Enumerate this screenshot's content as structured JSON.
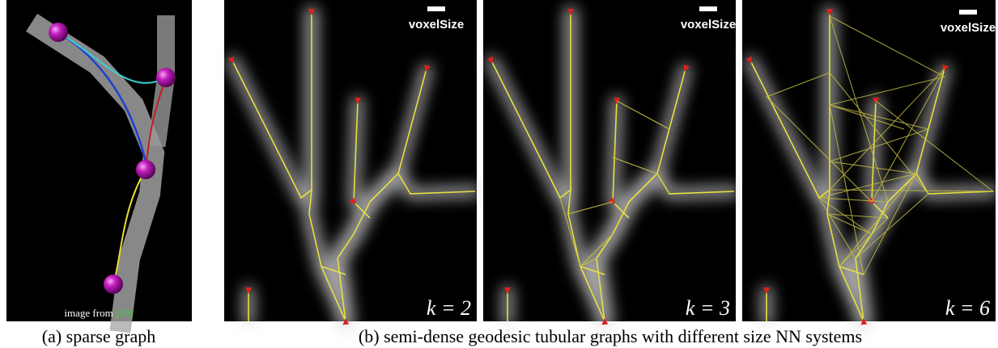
{
  "panel_a": {
    "credit": "image from",
    "ref": "[30]",
    "caption": "(a) sparse graph"
  },
  "panel_b": {
    "scale_label": "voxelSize",
    "k_labels": [
      "k = 2",
      "k = 3",
      "k = 6"
    ],
    "caption": "(b) semi-dense geodesic tubular graphs with different size NN systems"
  }
}
